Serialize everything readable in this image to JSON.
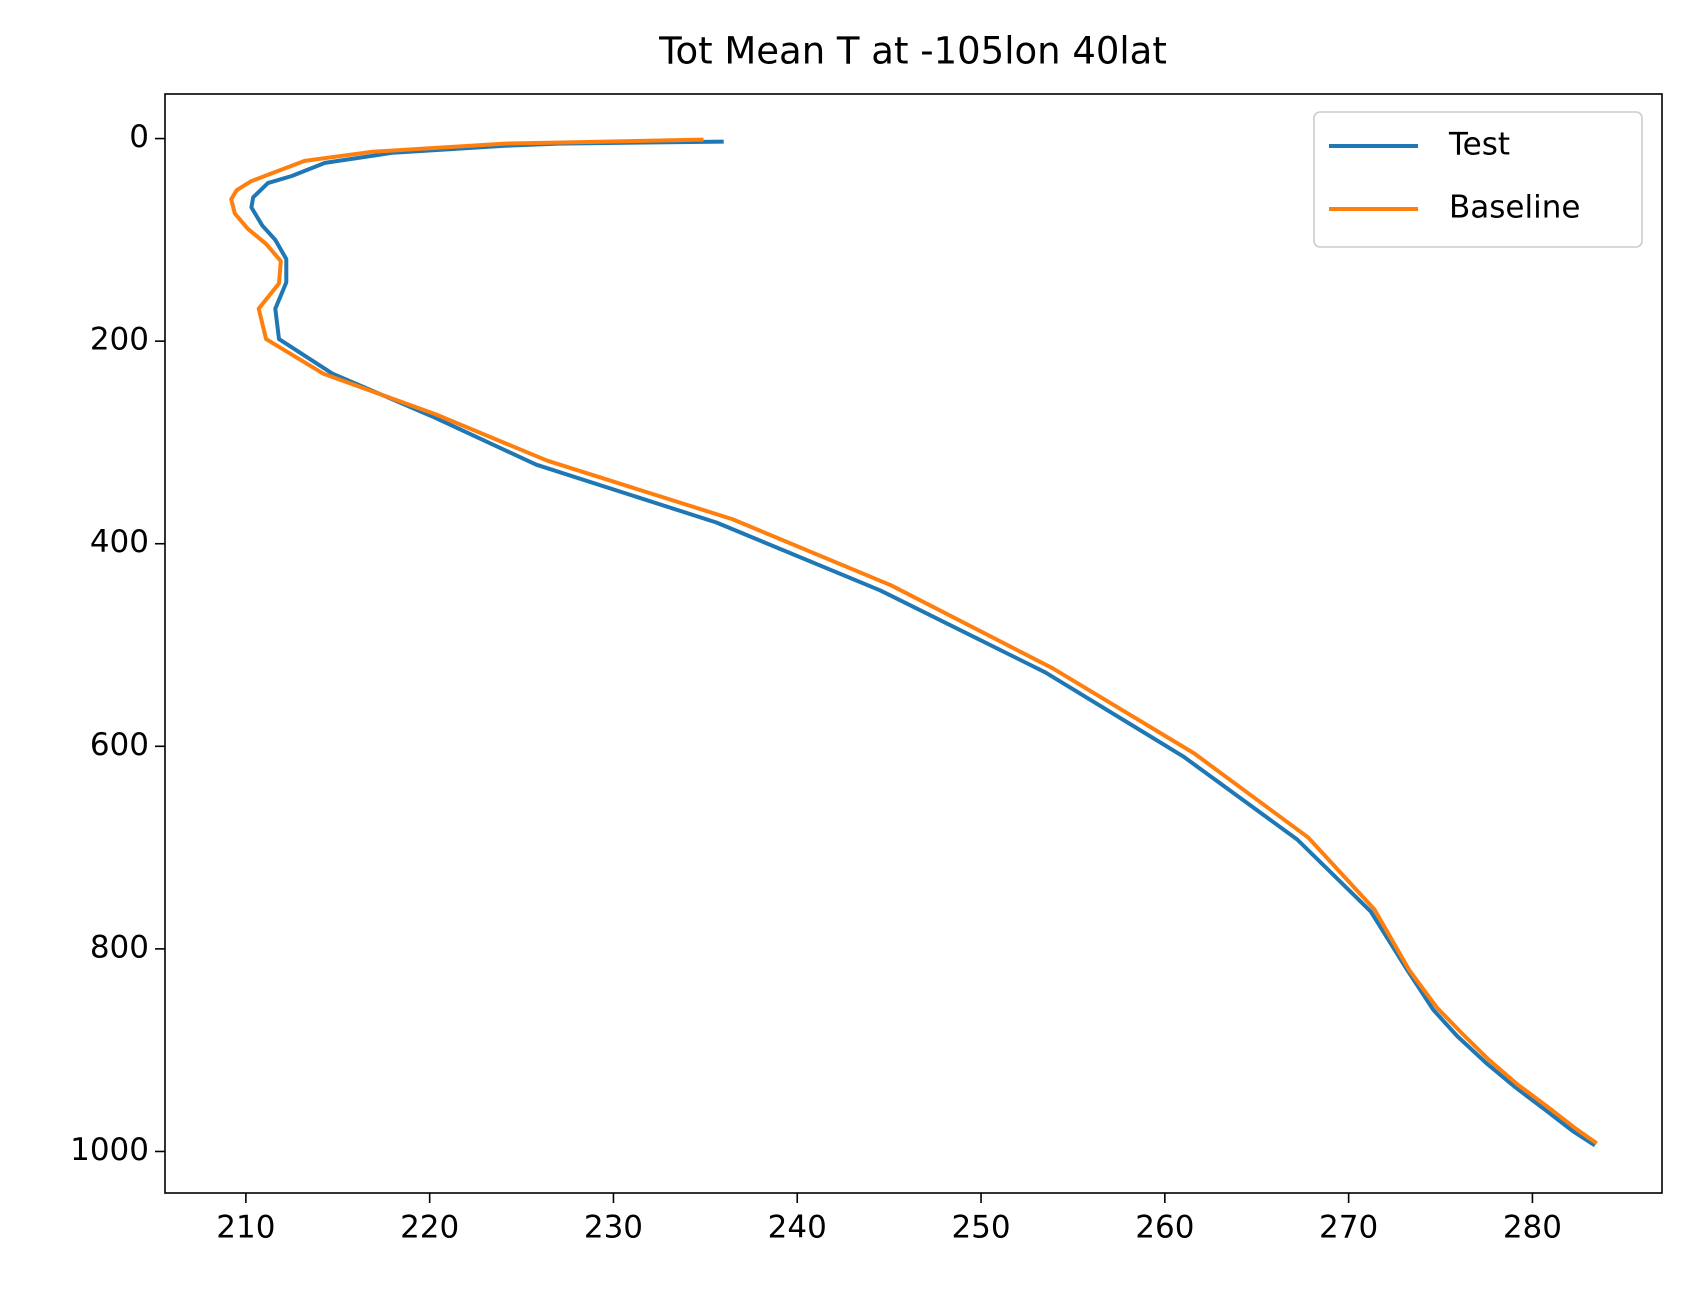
{
  "chart_data": {
    "type": "line",
    "title": "Tot Mean T at -105lon 40lat",
    "xlim": [
      205.6,
      287.05
    ],
    "xticks": [
      210,
      220,
      230,
      240,
      250,
      260,
      270,
      280
    ],
    "ylim": [
      1041,
      -44
    ],
    "yticks": [
      0,
      200,
      400,
      600,
      800,
      1000
    ],
    "grid": false,
    "legend": "upper right",
    "series": [
      {
        "name": "Test",
        "color": "#1f77b4",
        "x": [
          236.0,
          227.0,
          224.1,
          218.0,
          214.3,
          212.5,
          211.2,
          210.4,
          210.3,
          210.9,
          211.6,
          212.2,
          212.2,
          211.6,
          211.8,
          214.7,
          220.1,
          225.8,
          235.6,
          244.5,
          253.5,
          261.0,
          267.2,
          271.2,
          273.2,
          274.6,
          275.9,
          277.5,
          279.1,
          280.7,
          282.2,
          283.4
        ],
        "values": [
          3,
          5,
          7,
          14,
          24,
          37,
          44,
          58,
          68,
          86,
          100,
          119,
          142,
          168,
          198,
          232,
          274,
          322,
          379,
          446,
          527,
          610,
          692,
          763,
          821,
          860,
          886,
          913,
          937,
          959,
          980,
          994
        ]
      },
      {
        "name": "Baseline",
        "color": "#ff7f0e",
        "x": [
          234.9,
          226.9,
          224.1,
          216.9,
          213.2,
          211.6,
          210.3,
          209.5,
          209.2,
          209.4,
          210.1,
          211.1,
          211.9,
          211.8,
          210.7,
          211.1,
          214.2,
          220.3,
          226.4,
          236.5,
          245.1,
          253.9,
          261.6,
          267.8,
          271.4,
          273.3,
          274.8,
          276.2,
          277.6,
          279.2,
          280.9,
          282.4,
          283.5
        ],
        "values": [
          1,
          4,
          5,
          13,
          22,
          33,
          42,
          51,
          60,
          74,
          89,
          104,
          121,
          143,
          168,
          198,
          232,
          272,
          318,
          376,
          441,
          523,
          607,
          690,
          761,
          821,
          858,
          884,
          909,
          934,
          957,
          978,
          992
        ]
      }
    ]
  }
}
